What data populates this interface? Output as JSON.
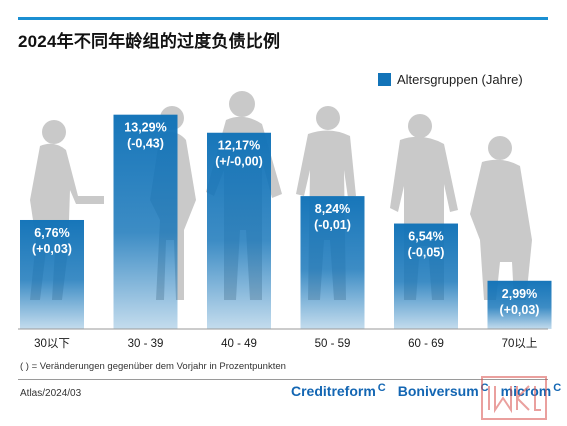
{
  "header": {
    "title": "2024年不同年龄组的过度负债比例"
  },
  "legend": {
    "label": "Altersgruppen (Jahre)"
  },
  "chart_data": {
    "type": "bar",
    "categories": [
      "30以下",
      "30 - 39",
      "40 - 49",
      "50 - 59",
      "60 - 69",
      "70以上"
    ],
    "values": [
      6.76,
      13.29,
      12.17,
      8.24,
      6.54,
      2.99
    ],
    "changes": [
      "(+0,03)",
      "(-0,43)",
      "(+/-0,00)",
      "(-0,01)",
      "(-0,05)",
      "(+0,03)"
    ],
    "value_labels": [
      "6,76%",
      "13,29%",
      "12,17%",
      "8,24%",
      "6,54%",
      "2,99%"
    ],
    "ylim": [
      0,
      14.2
    ],
    "legend_placement": "top-right",
    "grid": false,
    "bar_color": "#1273b8"
  },
  "footer": {
    "note": "( ) =  Veränderungen gegenüber dem Vorjahr in Prozentpunkten",
    "source": "Atlas/2024/03",
    "brands": [
      "Creditreform",
      "Boniversum",
      "microm"
    ],
    "brand_mark": "C",
    "watermark_text": "IKLFSM"
  }
}
